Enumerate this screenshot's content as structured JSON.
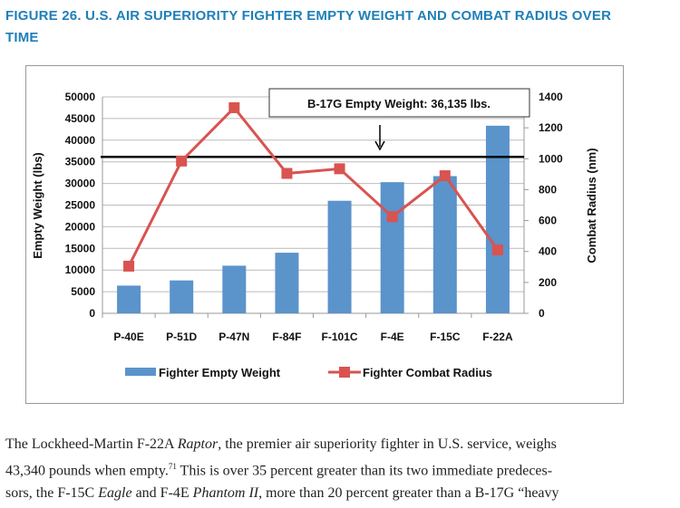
{
  "figure_title": "FIGURE 26. U.S. AIR SUPERIORITY FIGHTER EMPTY WEIGHT AND COMBAT RADIUS OVER TIME",
  "chart_data": {
    "type": "bar+line",
    "categories": [
      "P-40E",
      "P-51D",
      "P-47N",
      "F-84F",
      "F-101C",
      "F-4E",
      "F-15C",
      "F-22A"
    ],
    "series": [
      {
        "name": "Fighter Empty Weight",
        "type": "bar",
        "axis": "left",
        "color": "#5b93cb",
        "values": [
          6400,
          7600,
          11000,
          14000,
          26000,
          30300,
          31700,
          43340
        ]
      },
      {
        "name": "Fighter Combat Radius",
        "type": "line",
        "axis": "right",
        "color": "#d9534f",
        "values": [
          305,
          985,
          1330,
          905,
          935,
          625,
          890,
          410
        ]
      }
    ],
    "ylabel": "Empty Weight (lbs)",
    "y2label": "Combat Radius (nm)",
    "ylim": [
      0,
      50000
    ],
    "y2lim": [
      0,
      1400
    ],
    "yticks": [
      0,
      5000,
      10000,
      15000,
      20000,
      25000,
      30000,
      35000,
      40000,
      45000,
      50000
    ],
    "y2ticks": [
      0,
      200,
      400,
      600,
      800,
      1000,
      1200,
      1400
    ],
    "reference_line": {
      "value": 36135,
      "axis": "left",
      "label": "B-17G Empty Weight: 36,135 lbs."
    },
    "grid": true,
    "legend": "bottom"
  },
  "body_text": {
    "lines": [
      [
        {
          "t": "The Lockheed-Martin F-22A "
        },
        {
          "t": "Raptor",
          "i": true
        },
        {
          "t": ", the premier air superiority fighter in U.S. service, weighs"
        }
      ],
      [
        {
          "t": "43,340 pounds when empty."
        },
        {
          "t": "71",
          "sup": true
        },
        {
          "t": " This is over 35 percent greater than its two immediate predeces-"
        }
      ],
      [
        {
          "t": "sors, the F-15C "
        },
        {
          "t": "Eagle",
          "i": true
        },
        {
          "t": " and F-4E "
        },
        {
          "t": "Phantom II",
          "i": true
        },
        {
          "t": ", more than 20 percent greater than a B-17G “heavy"
        }
      ]
    ]
  }
}
